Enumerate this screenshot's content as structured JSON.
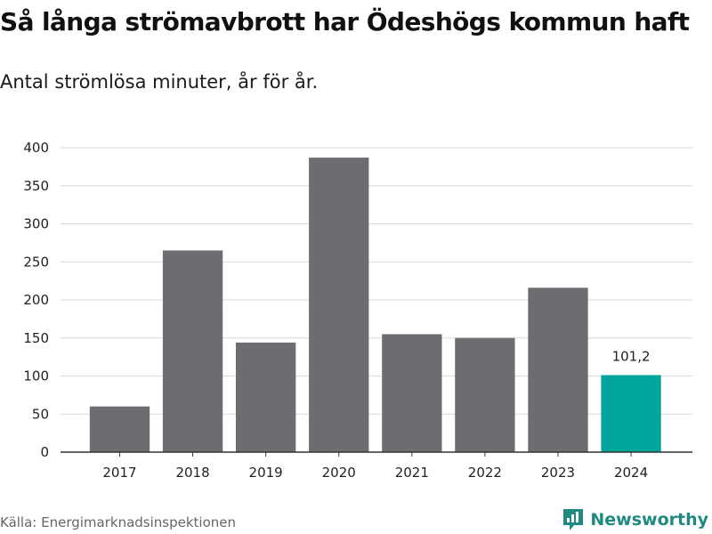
{
  "chart_data": {
    "type": "bar",
    "title": "Så långa strömavbrott har Ödeshögs kommun haft",
    "subtitle": "Antal strömlösa minuter, år för år.",
    "categories": [
      "2017",
      "2018",
      "2019",
      "2020",
      "2021",
      "2022",
      "2023",
      "2024"
    ],
    "values": [
      60,
      265,
      144,
      387,
      155,
      150,
      216,
      101.2
    ],
    "highlight_index": 7,
    "highlight_label": "101,2",
    "ylim": [
      0,
      400
    ],
    "yticks": [
      0,
      50,
      100,
      150,
      200,
      250,
      300,
      350,
      400
    ],
    "xlabel": "",
    "ylabel": "",
    "grid": true,
    "colors": {
      "bar": "#6d6c71",
      "highlight": "#00a59b",
      "grid": "#d9d9d9",
      "axis": "#333333"
    }
  },
  "footer": {
    "source": "Källa: Energimarknadsinspektionen",
    "brand": "Newsworthy",
    "brand_icon": "newsworthy-logo-icon"
  }
}
